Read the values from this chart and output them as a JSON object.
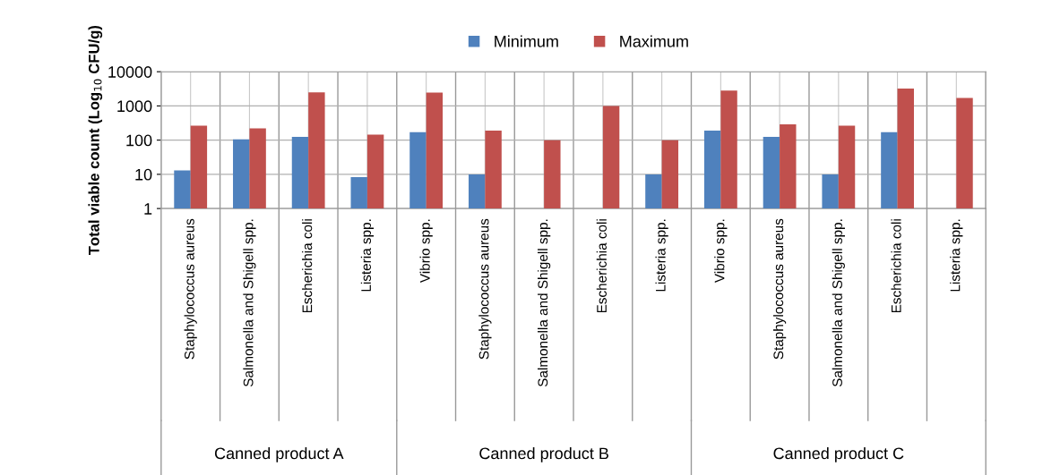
{
  "chart_data": {
    "type": "bar",
    "ylabel": "Total viable count (Log$_{10}$ CFU/g)",
    "categories": [
      "Staphylococcus aureus",
      "Salmonella and Shigell spp.",
      "Escherichia coli",
      "Listeria spp.",
      "Vibrio spp.",
      "Staphylococcus aureus",
      "Salmonella and Shigell spp.",
      "Escherichia coli",
      "Listeria spp.",
      "Vibrio spp.",
      "Staphylococcus aureus",
      "Salmonella and Shigell spp.",
      "Escherichia coli",
      "Listeria spp."
    ],
    "series": [
      {
        "name": "Minimum",
        "color": "#4f81bd",
        "values": [
          13,
          105,
          125,
          8.3,
          170,
          10,
          null,
          null,
          10,
          190,
          125,
          10,
          170,
          null
        ]
      },
      {
        "name": "Maximum",
        "color": "#c0504d",
        "values": [
          265,
          220,
          2500,
          145,
          2450,
          190,
          100,
          1000,
          100,
          2800,
          290,
          265,
          3200,
          1700
        ]
      }
    ],
    "log": true,
    "ylim": [
      1,
      10000
    ],
    "yticks": [
      1,
      10,
      100,
      1000,
      10000
    ],
    "grid": true,
    "legend": "top",
    "annotations": [
      "Canned product A",
      "Canned product B",
      "Canned product C"
    ]
  }
}
